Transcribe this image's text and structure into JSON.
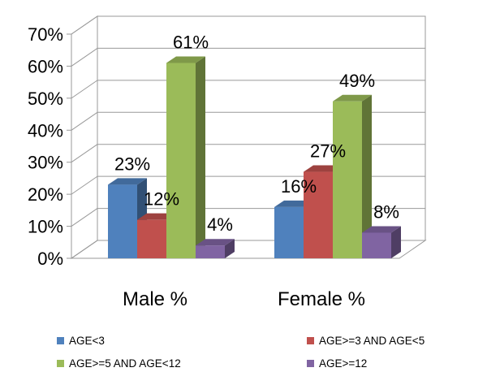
{
  "chart_data": {
    "type": "bar",
    "categories": [
      "Male %",
      "Female %"
    ],
    "series": [
      {
        "name": "AGE<3",
        "values": [
          23,
          16
        ],
        "labels": [
          "23%",
          "16%"
        ],
        "color": "#4f81bd"
      },
      {
        "name": "AGE>=3 AND AGE<5",
        "values": [
          12,
          27
        ],
        "labels": [
          "12%",
          "27%"
        ],
        "color": "#c0504d"
      },
      {
        "name": "AGE>=5 AND AGE<12",
        "values": [
          61,
          49
        ],
        "labels": [
          "61%",
          "49%"
        ],
        "color": "#9bbb59"
      },
      {
        "name": "AGE>=12",
        "values": [
          4,
          8
        ],
        "labels": [
          "4%",
          "8%"
        ],
        "color": "#8064a2"
      }
    ],
    "ylim": [
      0,
      70
    ],
    "yticks": [
      "0%",
      "10%",
      "20%",
      "30%",
      "40%",
      "50%",
      "60%",
      "70%"
    ],
    "grid": true,
    "legend_position": "bottom",
    "style": "3d-clustered-column"
  }
}
